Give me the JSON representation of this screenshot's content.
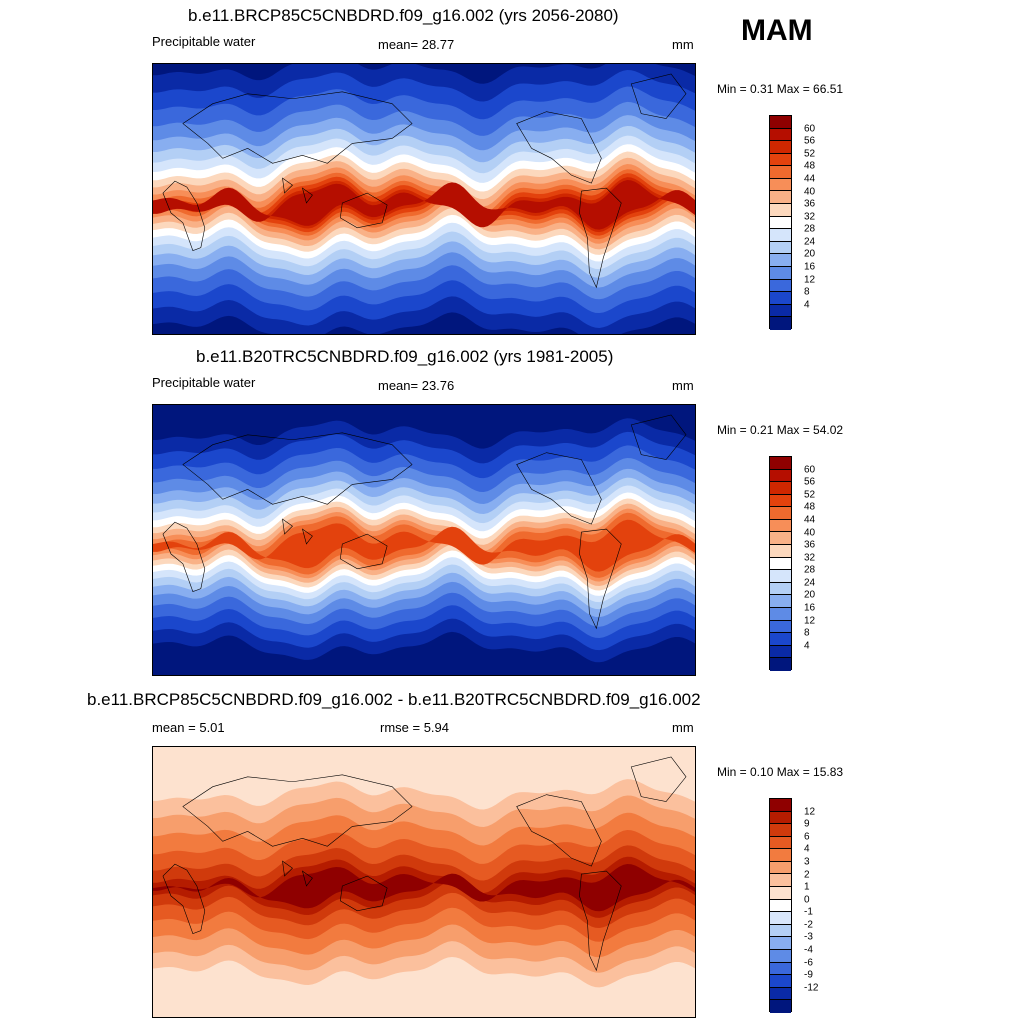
{
  "season": "MAM",
  "panels": [
    {
      "title": "b.e11.BRCP85C5CNBDRD.f09_g16.002 (yrs 2056-2080)",
      "left_label": "Precipitable water",
      "center_label": "mean=  28.77",
      "units": "mm",
      "minmax": "Min =   0.31 Max =  66.51",
      "kind": "abs",
      "levels": [
        "60",
        "56",
        "52",
        "48",
        "44",
        "40",
        "36",
        "32",
        "28",
        "24",
        "20",
        "16",
        "12",
        "8",
        "4"
      ],
      "colors": [
        "#8f0000",
        "#b50e00",
        "#cf2700",
        "#e3420d",
        "#ef6a2e",
        "#f78e58",
        "#f9b187",
        "#fcd8bd",
        "#ffffff",
        "#d5e5fb",
        "#b3cff5",
        "#88aef0",
        "#5e8be6",
        "#3a68dc",
        "#1b47cc",
        "#0a2aa6",
        "#00167d"
      ]
    },
    {
      "title": "b.e11.B20TRC5CNBDRD.f09_g16.002 (yrs 1981-2005)",
      "left_label": "Precipitable water",
      "center_label": "mean=  23.76",
      "units": "mm",
      "minmax": "Min =   0.21 Max =  54.02",
      "kind": "abs",
      "levels": [
        "60",
        "56",
        "52",
        "48",
        "44",
        "40",
        "36",
        "32",
        "28",
        "24",
        "20",
        "16",
        "12",
        "8",
        "4"
      ],
      "colors": [
        "#8f0000",
        "#b50e00",
        "#cf2700",
        "#e3420d",
        "#ef6a2e",
        "#f78e58",
        "#f9b187",
        "#fcd8bd",
        "#ffffff",
        "#d5e5fb",
        "#b3cff5",
        "#88aef0",
        "#5e8be6",
        "#3a68dc",
        "#1b47cc",
        "#0a2aa6",
        "#00167d"
      ]
    },
    {
      "title": "b.e11.BRCP85C5CNBDRD.f09_g16.002 - b.e11.B20TRC5CNBDRD.f09_g16.002",
      "left_label": "mean =   5.01",
      "center_label": "rmse =   5.94",
      "units": "mm",
      "minmax": "Min =   0.10 Max =  15.83",
      "kind": "diff",
      "levels": [
        "12",
        "9",
        "6",
        "4",
        "3",
        "2",
        "1",
        "0",
        "-1",
        "-2",
        "-3",
        "-4",
        "-6",
        "-9",
        "-12"
      ],
      "colors": [
        "#8f0000",
        "#b51c00",
        "#d03a0c",
        "#e65a22",
        "#f27b3f",
        "#f79e6c",
        "#fbc09d",
        "#fde2cf",
        "#ffffff",
        "#d8e6fb",
        "#b3cff5",
        "#88aef0",
        "#5e8be6",
        "#3a68dc",
        "#1b47cc",
        "#0a2aa6",
        "#00167d"
      ]
    }
  ]
}
